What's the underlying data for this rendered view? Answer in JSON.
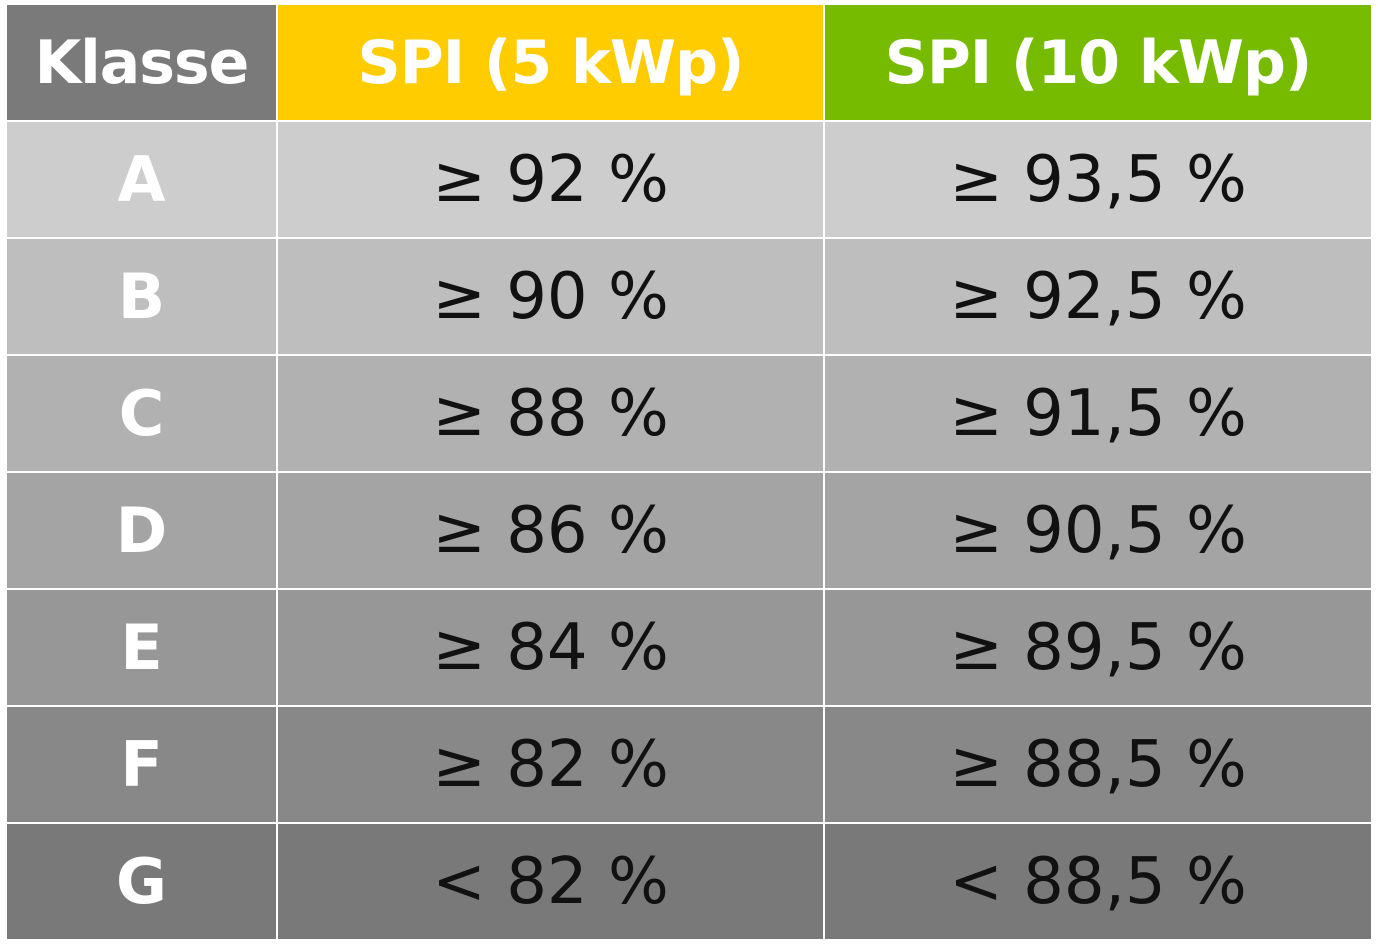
{
  "table": {
    "headers": [
      "Klasse",
      "SPI (5 kWp)",
      "SPI (10 kWp)"
    ],
    "header_colors": [
      "#7a7a7a",
      "#ffcc00",
      "#77bb00"
    ],
    "rows": [
      {
        "klasse": "A",
        "spi5": "≥ 92 %",
        "spi10": "≥ 93,5 %"
      },
      {
        "klasse": "B",
        "spi5": "≥ 90 %",
        "spi10": "≥ 92,5 %"
      },
      {
        "klasse": "C",
        "spi5": "≥ 88 %",
        "spi10": "≥ 91,5 %"
      },
      {
        "klasse": "D",
        "spi5": "≥ 86 %",
        "spi10": "≥ 90,5 %"
      },
      {
        "klasse": "E",
        "spi5": "≥ 84 %",
        "spi10": "≥ 89,5 %"
      },
      {
        "klasse": "F",
        "spi5": "≥ 82 %",
        "spi10": "≥ 88,5 %"
      },
      {
        "klasse": "G",
        "spi5": "< 82 %",
        "spi10": "< 88,5 %"
      }
    ]
  }
}
